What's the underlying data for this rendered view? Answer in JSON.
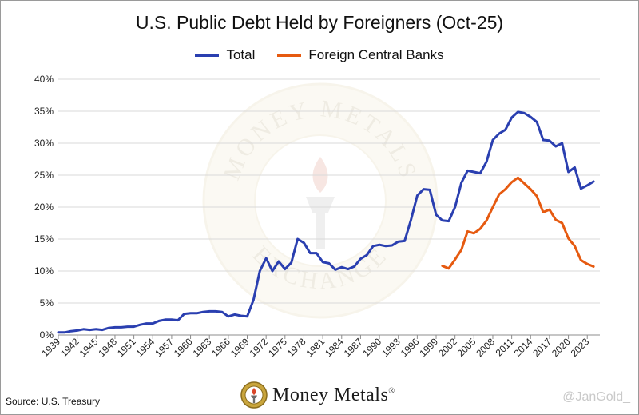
{
  "chart_data": {
    "type": "line",
    "title": "U.S. Public Debt Held by Foreigners (Oct-25)",
    "xlabel": "",
    "ylabel": "",
    "ylim": [
      0,
      40
    ],
    "yticks": [
      "0%",
      "5%",
      "10%",
      "15%",
      "20%",
      "25%",
      "30%",
      "35%",
      "40%"
    ],
    "xlim": [
      1939,
      2025
    ],
    "xticks": [
      "1939",
      "1942",
      "1945",
      "1948",
      "1951",
      "1954",
      "1957",
      "1960",
      "1963",
      "1966",
      "1969",
      "1972",
      "1975",
      "1978",
      "1981",
      "1984",
      "1987",
      "1990",
      "1993",
      "1996",
      "1999",
      "2002",
      "2005",
      "2008",
      "2011",
      "2014",
      "2017",
      "2020",
      "2023"
    ],
    "grid": true,
    "legend_position": "top",
    "series": [
      {
        "name": "Total",
        "color": "#2a3fb0",
        "points": [
          [
            1939,
            0.4
          ],
          [
            1940,
            0.4
          ],
          [
            1941,
            0.6
          ],
          [
            1942,
            0.7
          ],
          [
            1943,
            0.9
          ],
          [
            1944,
            0.8
          ],
          [
            1945,
            0.9
          ],
          [
            1946,
            0.8
          ],
          [
            1947,
            1.1
          ],
          [
            1948,
            1.2
          ],
          [
            1949,
            1.2
          ],
          [
            1950,
            1.3
          ],
          [
            1951,
            1.3
          ],
          [
            1952,
            1.6
          ],
          [
            1953,
            1.8
          ],
          [
            1954,
            1.8
          ],
          [
            1955,
            2.2
          ],
          [
            1956,
            2.4
          ],
          [
            1957,
            2.4
          ],
          [
            1958,
            2.3
          ],
          [
            1959,
            3.3
          ],
          [
            1960,
            3.4
          ],
          [
            1961,
            3.4
          ],
          [
            1962,
            3.6
          ],
          [
            1963,
            3.7
          ],
          [
            1964,
            3.7
          ],
          [
            1965,
            3.6
          ],
          [
            1966,
            2.9
          ],
          [
            1967,
            3.2
          ],
          [
            1968,
            3.0
          ],
          [
            1969,
            2.9
          ],
          [
            1970,
            5.5
          ],
          [
            1971,
            10.0
          ],
          [
            1972,
            12.0
          ],
          [
            1973,
            10.0
          ],
          [
            1974,
            11.5
          ],
          [
            1975,
            10.3
          ],
          [
            1976,
            11.3
          ],
          [
            1977,
            15.0
          ],
          [
            1978,
            14.4
          ],
          [
            1979,
            12.8
          ],
          [
            1980,
            12.8
          ],
          [
            1981,
            11.4
          ],
          [
            1982,
            11.2
          ],
          [
            1983,
            10.2
          ],
          [
            1984,
            10.6
          ],
          [
            1985,
            10.3
          ],
          [
            1986,
            10.7
          ],
          [
            1987,
            11.9
          ],
          [
            1988,
            12.5
          ],
          [
            1989,
            13.9
          ],
          [
            1990,
            14.1
          ],
          [
            1991,
            13.9
          ],
          [
            1992,
            14.0
          ],
          [
            1993,
            14.6
          ],
          [
            1994,
            14.7
          ],
          [
            1995,
            18.0
          ],
          [
            1996,
            21.8
          ],
          [
            1997,
            22.8
          ],
          [
            1998,
            22.7
          ],
          [
            1999,
            18.8
          ],
          [
            2000,
            17.9
          ],
          [
            2001,
            17.8
          ],
          [
            2002,
            20.0
          ],
          [
            2003,
            23.8
          ],
          [
            2004,
            25.7
          ],
          [
            2005,
            25.5
          ],
          [
            2006,
            25.3
          ],
          [
            2007,
            27.1
          ],
          [
            2008,
            30.5
          ],
          [
            2009,
            31.5
          ],
          [
            2010,
            32.1
          ],
          [
            2011,
            34.0
          ],
          [
            2012,
            34.9
          ],
          [
            2013,
            34.7
          ],
          [
            2014,
            34.1
          ],
          [
            2015,
            33.3
          ],
          [
            2016,
            30.5
          ],
          [
            2017,
            30.4
          ],
          [
            2018,
            29.5
          ],
          [
            2019,
            30.0
          ],
          [
            2020,
            25.5
          ],
          [
            2021,
            26.2
          ],
          [
            2022,
            22.9
          ],
          [
            2023,
            23.4
          ],
          [
            2024,
            24.0
          ]
        ]
      },
      {
        "name": "Foreign Central Banks",
        "color": "#e65a10",
        "points": [
          [
            2000,
            10.8
          ],
          [
            2001,
            10.4
          ],
          [
            2002,
            11.8
          ],
          [
            2003,
            13.3
          ],
          [
            2004,
            16.2
          ],
          [
            2005,
            15.9
          ],
          [
            2006,
            16.6
          ],
          [
            2007,
            17.9
          ],
          [
            2008,
            20.0
          ],
          [
            2009,
            22.0
          ],
          [
            2010,
            22.8
          ],
          [
            2011,
            23.9
          ],
          [
            2012,
            24.6
          ],
          [
            2013,
            23.7
          ],
          [
            2014,
            22.8
          ],
          [
            2015,
            21.7
          ],
          [
            2016,
            19.2
          ],
          [
            2017,
            19.6
          ],
          [
            2018,
            18.0
          ],
          [
            2019,
            17.5
          ],
          [
            2020,
            15.1
          ],
          [
            2021,
            13.9
          ],
          [
            2022,
            11.7
          ],
          [
            2023,
            11.1
          ],
          [
            2024,
            10.7
          ]
        ]
      }
    ]
  },
  "source": "Source: U.S. Treasury",
  "brand": "Money Metals",
  "brand_mark": "®",
  "handle": "@JanGold_",
  "watermark_top": "MONEY METALS",
  "watermark_bottom": "EXCHANGE"
}
